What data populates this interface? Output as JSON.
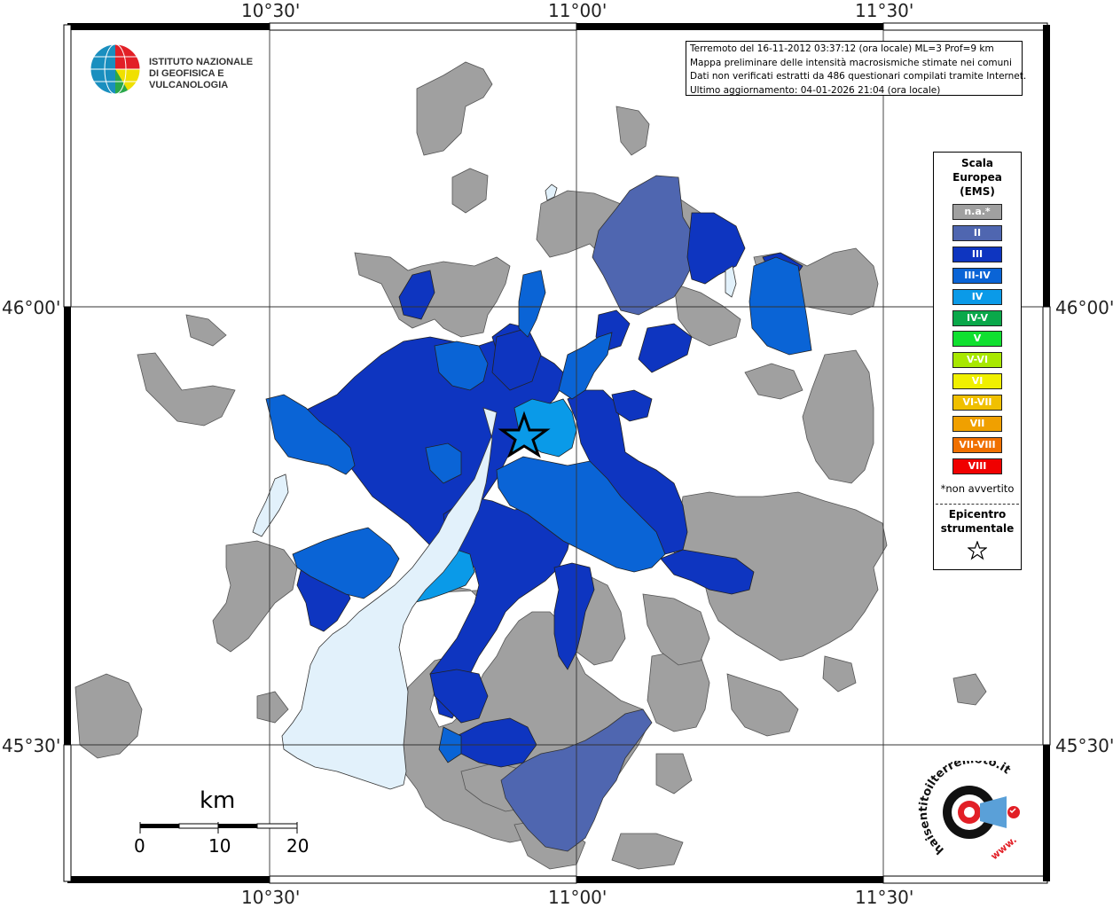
{
  "coords": {
    "lon_labels": [
      "10°30'",
      "11°00'",
      "11°30'"
    ],
    "lat_labels": [
      "46°00'",
      "45°30'"
    ]
  },
  "info": {
    "line1": "Terremoto del 16-11-2012 03:37:12 (ora locale) ML=3 Prof=9 km",
    "line2": "Mappa preliminare delle intensità macrosismiche stimate nei comuni",
    "line3": "Dati non verificati estratti da 486 questionari compilati tramite Internet.",
    "line4": "Ultimo aggiornamento: 04-01-2026 21:04 (ora locale)"
  },
  "ingv": {
    "line1": "ISTITUTO NAZIONALE",
    "line2": "DI GEOFISICA E VULCANOLOGIA"
  },
  "legend": {
    "title1": "Scala",
    "title2": "Europea",
    "title3": "(EMS)",
    "items": [
      {
        "label": "n.a.*",
        "color": "#a0a0a0"
      },
      {
        "label": "II",
        "color": "#4f66b0"
      },
      {
        "label": "III",
        "color": "#0e35c0"
      },
      {
        "label": "III-IV",
        "color": "#0a64d6"
      },
      {
        "label": "IV",
        "color": "#0a9ae8"
      },
      {
        "label": "IV-V",
        "color": "#0aa84a"
      },
      {
        "label": "V",
        "color": "#10e030"
      },
      {
        "label": "V-VI",
        "color": "#a8e800"
      },
      {
        "label": "VI",
        "color": "#f0f000"
      },
      {
        "label": "VI-VII",
        "color": "#f0c000"
      },
      {
        "label": "VII",
        "color": "#f0a000"
      },
      {
        "label": "VII-VIII",
        "color": "#f07000"
      },
      {
        "label": "VIII",
        "color": "#f00000"
      }
    ],
    "note": "*non avvertito",
    "epi1": "Epicentro",
    "epi2": "strumentale"
  },
  "scale": {
    "unit": "km",
    "ticks": [
      "0",
      "10",
      "20"
    ]
  },
  "hsit": {
    "text": "haisentitoilterremoto.it",
    "www": "www."
  },
  "colors": {
    "na": "#a0a0a0",
    "II": "#4f66b0",
    "III": "#0e35c0",
    "III_IV": "#0a64d6",
    "IV": "#0a9ae8",
    "lake": "#e2f1fb"
  }
}
